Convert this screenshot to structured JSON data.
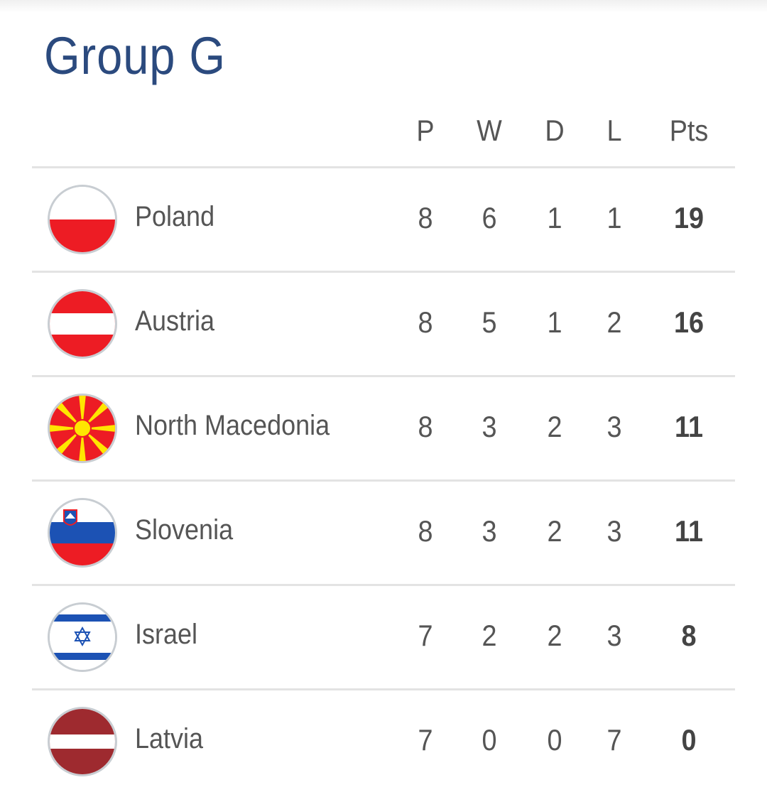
{
  "title": "Group G",
  "columns": [
    "P",
    "W",
    "D",
    "L",
    "Pts"
  ],
  "rows": [
    {
      "team": "Poland",
      "flag": "poland-flag",
      "P": "8",
      "W": "6",
      "D": "1",
      "L": "1",
      "Pts": "19"
    },
    {
      "team": "Austria",
      "flag": "austria-flag",
      "P": "8",
      "W": "5",
      "D": "1",
      "L": "2",
      "Pts": "16"
    },
    {
      "team": "North Macedonia",
      "flag": "north-macedonia-flag",
      "P": "8",
      "W": "3",
      "D": "2",
      "L": "3",
      "Pts": "11"
    },
    {
      "team": "Slovenia",
      "flag": "slovenia-flag",
      "P": "8",
      "W": "3",
      "D": "2",
      "L": "3",
      "Pts": "11"
    },
    {
      "team": "Israel",
      "flag": "israel-flag",
      "P": "7",
      "W": "2",
      "D": "2",
      "L": "3",
      "Pts": "8"
    },
    {
      "team": "Latvia",
      "flag": "latvia-flag",
      "P": "7",
      "W": "0",
      "D": "0",
      "L": "7",
      "Pts": "0"
    }
  ],
  "colors": {
    "title": "#2b4a7e",
    "red": "#ed1c24",
    "latvia": "#9e2a2f",
    "blue": "#1c52b4",
    "yellow": "#ffe600"
  }
}
